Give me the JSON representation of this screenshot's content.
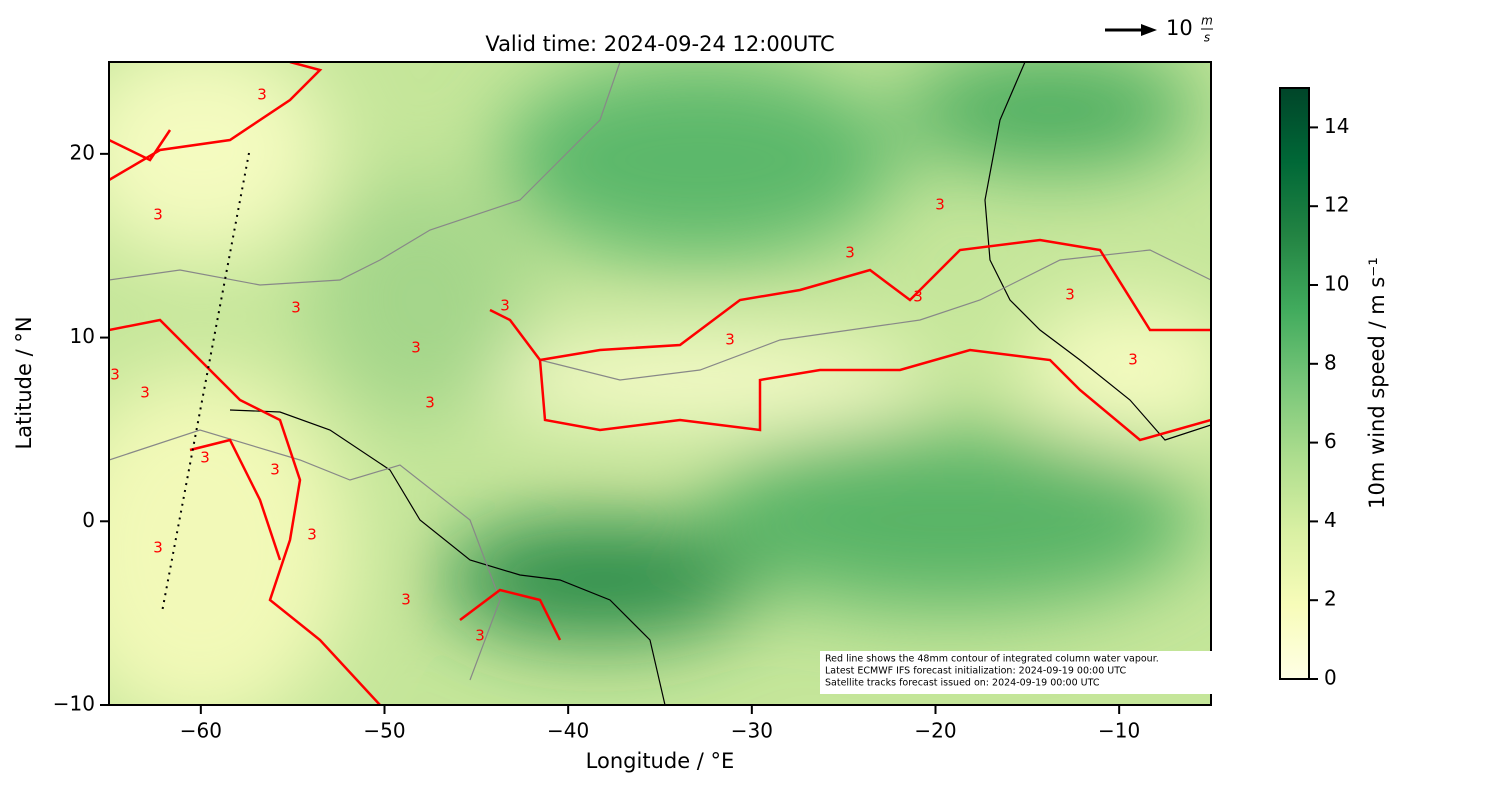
{
  "chart_data": {
    "type": "map",
    "title": "Valid time: 2024-09-24 12:00UTC",
    "xlabel": "Longitude / °E",
    "ylabel": "Latitude / °N",
    "xlim": [
      -65,
      -5
    ],
    "ylim": [
      -10,
      25
    ],
    "xticks": [
      {
        "value": -60,
        "label": "−60"
      },
      {
        "value": -50,
        "label": "−50"
      },
      {
        "value": -40,
        "label": "−40"
      },
      {
        "value": -30,
        "label": "−30"
      },
      {
        "value": -20,
        "label": "−20"
      },
      {
        "value": -10,
        "label": "−10"
      }
    ],
    "yticks": [
      {
        "value": -10,
        "label": "−10"
      },
      0,
      10,
      20
    ],
    "colorbar": {
      "label": "10m wind speed / m s⁻¹",
      "lim": [
        0,
        15
      ],
      "ticks": [
        0,
        2,
        4,
        6,
        8,
        10,
        12,
        14
      ],
      "colormap": [
        "#ffffe5",
        "#f7fcb9",
        "#d9f0a3",
        "#addd8e",
        "#78c679",
        "#41ab5d",
        "#238443",
        "#006837",
        "#004529"
      ]
    },
    "contour_label": "3",
    "contour_color": "#ff0000",
    "quiver_key": {
      "value": 10,
      "unit_numerator": "m",
      "unit_denominator": "s"
    },
    "annotation": [
      "Red line shows the 48mm contour of integrated column water vapour.",
      "Latest ECMWF IFS forecast initialization: 2024-09-19 00:00 UTC",
      "Satellite tracks forecast issued on: 2024-09-19 00:00 UTC"
    ]
  }
}
